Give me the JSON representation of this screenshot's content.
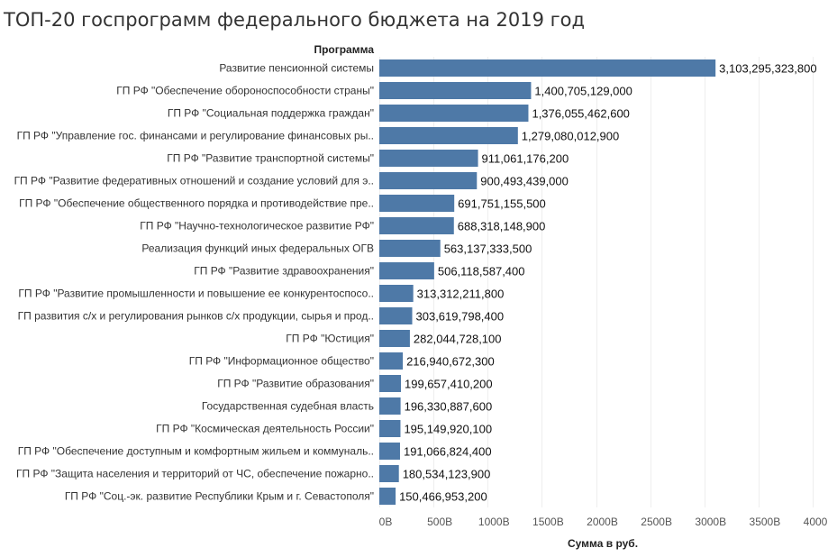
{
  "chart_data": {
    "type": "bar",
    "orientation": "horizontal",
    "title": "ТОП-20 госпрограмм федерального бюджета на 2019 год",
    "row_header": "Программа",
    "xlabel": "Сумма в руб.",
    "xlim": [
      0,
      4000000000000
    ],
    "x_ticks": [
      0,
      500000000000,
      1000000000000,
      1500000000000,
      2000000000000,
      2500000000000,
      3000000000000,
      3500000000000,
      4000000000000
    ],
    "x_tick_labels": [
      "0B",
      "500B",
      "1000B",
      "1500B",
      "2000B",
      "2500B",
      "3000B",
      "3500B",
      "4000B"
    ],
    "grid": true,
    "bar_color": "#4e79a7",
    "categories": [
      "Развитие пенсионной системы",
      "ГП РФ \"Обеспечение обороноспособности страны\"",
      "ГП РФ \"Социальная поддержка граждан\"",
      "ГП РФ \"Управление гос. финансами и регулирование финансовых ры..",
      "ГП РФ \"Развитие транспортной системы\"",
      "ГП РФ \"Развитие федеративных отношений и создание условий для э..",
      "ГП РФ \"Обеспечение общественного порядка и противодействие пре..",
      "ГП РФ \"Научно-технологическое развитие РФ\"",
      "Реализация функций иных федеральных ОГВ",
      "ГП РФ \"Развитие здравоохранения\"",
      "ГП РФ \"Развитие промышленности и повышение ее конкурентоспосо..",
      "ГП развития с/х и регулирования рынков с/х продукции, сырья и прод..",
      "ГП РФ \"Юстиция\"",
      "ГП РФ \"Информационное общество\"",
      "ГП РФ \"Развитие образования\"",
      "Государственная судебная власть",
      "ГП РФ \"Космическая деятельность России\"",
      "ГП РФ \"Обеспечение доступным и комфортным жильем и коммуналь..",
      "ГП РФ \"Защита населения и территорий от ЧС, обеспечение пожарно..",
      "ГП РФ \"Соц.-эк. развитие Республики Крым и г. Севастополя\""
    ],
    "values": [
      3103295323800,
      1400705129000,
      1376055462600,
      1279080012900,
      911061176200,
      900493439000,
      691751155500,
      688318148900,
      563137333500,
      506118587400,
      313312211800,
      303619798400,
      282044728100,
      216940672300,
      199657410200,
      196330887600,
      195149920100,
      191066824400,
      180534123900,
      150466953200
    ],
    "value_labels": [
      "3,103,295,323,800",
      "1,400,705,129,000",
      "1,376,055,462,600",
      "1,279,080,012,900",
      "911,061,176,200",
      "900,493,439,000",
      "691,751,155,500",
      "688,318,148,900",
      "563,137,333,500",
      "506,118,587,400",
      "313,312,211,800",
      "303,619,798,400",
      "282,044,728,100",
      "216,940,672,300",
      "199,657,410,200",
      "196,330,887,600",
      "195,149,920,100",
      "191,066,824,400",
      "180,534,123,900",
      "150,466,953,200"
    ]
  }
}
